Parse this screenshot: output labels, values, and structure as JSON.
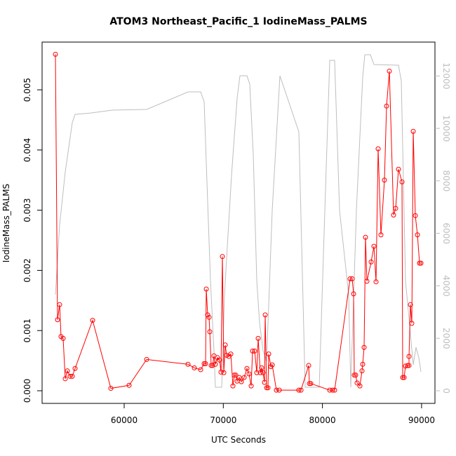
{
  "chart_data": {
    "type": "line",
    "title": "ATOM3 Northeast_Pacific_1 IodineMass_PALMS",
    "x_label": "UTC Seconds",
    "y_label": "IodineMass_PALMS",
    "xlim": [
      51720,
      91350
    ],
    "xticks": [
      60000,
      70000,
      80000,
      90000
    ],
    "ylim": [
      -0.00021,
      0.005793
    ],
    "yticks": [
      {
        "value": 0,
        "label": "0.000"
      },
      {
        "value": 0.001,
        "label": "0.001"
      },
      {
        "value": 0.002,
        "label": "0.002"
      },
      {
        "value": 0.003,
        "label": "0.003"
      },
      {
        "value": 0.004,
        "label": "0.004"
      },
      {
        "value": 0.005,
        "label": "0.005"
      }
    ],
    "y2lim": [
      -481,
      13289
    ],
    "y2ticks": [
      0,
      2000,
      4000,
      6000,
      8000,
      10000,
      12000
    ],
    "series": [
      {
        "color": "#bebebe",
        "axis": "y2",
        "markers": false,
        "x": [
          53065,
          53490,
          54055,
          54763,
          55046,
          56674,
          58797,
          62265,
          66440,
          67714,
          68068,
          68351,
          68705,
          69059,
          69200,
          69837,
          70120,
          70828,
          71394,
          71677,
          72385,
          72668,
          73022,
          73376,
          73659,
          74013,
          74367,
          74933,
          75711,
          77622,
          78259,
          79675,
          80241,
          80736,
          81231,
          81727,
          82646,
          82859,
          83425,
          84062,
          84274,
          84840,
          85194,
          87671,
          87954,
          88379,
          89158,
          89441,
          89724,
          89936
        ],
        "values": [
          3663,
          6337,
          8342,
          10214,
          10535,
          10588,
          10695,
          10722,
          11390,
          11390,
          11016,
          7941,
          4198,
          1524,
          134,
          134,
          3663,
          8209,
          11150,
          12005,
          12005,
          11684,
          9011,
          4198,
          2594,
          1524,
          1123,
          6872,
          12005,
          9866,
          134,
          134,
          6872,
          12594,
          12594,
          6872,
          3663,
          134,
          6872,
          11952,
          12807,
          12807,
          12433,
          12406,
          11818,
          4198,
          990,
          1658,
          1257,
          722
        ]
      },
      {
        "color": "#ff0000",
        "axis": "y",
        "markers": true,
        "x": [
          53065,
          53277,
          53490,
          53630,
          53843,
          54055,
          54267,
          54550,
          54763,
          55046,
          56815,
          58655,
          60495,
          62265,
          66440,
          67077,
          67714,
          68068,
          68210,
          68280,
          68422,
          68563,
          68634,
          68775,
          68917,
          69059,
          69200,
          69413,
          69625,
          69766,
          69908,
          70050,
          70191,
          70333,
          70545,
          70757,
          70970,
          71111,
          71253,
          71394,
          71607,
          71819,
          72102,
          72385,
          72597,
          72810,
          72951,
          73163,
          73376,
          73517,
          73730,
          73871,
          74013,
          74154,
          74225,
          74367,
          74508,
          74579,
          74791,
          74933,
          75357,
          75640,
          77622,
          77834,
          78613,
          78684,
          78825,
          80736,
          81019,
          81231,
          82788,
          83000,
          83141,
          83212,
          83354,
          83495,
          83778,
          83991,
          84062,
          84203,
          84345,
          84486,
          84911,
          85194,
          85406,
          85618,
          85901,
          86255,
          86468,
          86751,
          87176,
          87388,
          87671,
          88025,
          88096,
          88237,
          88379,
          88591,
          88733,
          88733,
          88875,
          89016,
          89158,
          89370,
          89583,
          89795,
          89936
        ],
        "values": [
          0.00559,
          0.00118,
          0.00143,
          0.0009,
          0.00087,
          0.0002,
          0.00033,
          0.00024,
          0.00024,
          0.00037,
          0.00117,
          4e-05,
          9e-05,
          0.00052,
          0.00044,
          0.00038,
          0.00035,
          0.00045,
          0.00045,
          0.00169,
          0.00126,
          0.00122,
          0.00098,
          0.00042,
          0.00042,
          0.00058,
          0.00044,
          0.00055,
          0.00051,
          0.00031,
          0.00223,
          0.0003,
          0.00076,
          0.00059,
          0.00057,
          0.00061,
          8e-05,
          0.00026,
          0.00026,
          0.00016,
          0.00022,
          0.00015,
          0.00022,
          0.00037,
          0.00028,
          8e-05,
          0.00066,
          0.00066,
          0.0003,
          0.00087,
          0.0003,
          0.00038,
          0.0003,
          0.00014,
          0.00126,
          5e-05,
          5e-05,
          0.00061,
          0.0004,
          0.00043,
          1e-05,
          1e-05,
          1e-05,
          1e-05,
          0.00042,
          0.00012,
          0.00012,
          1e-05,
          1e-05,
          1e-05,
          0.00186,
          0.00186,
          0.00161,
          0.00026,
          0.00026,
          0.00013,
          8e-05,
          0.00033,
          0.00044,
          0.00072,
          0.00255,
          0.00182,
          0.00214,
          0.0024,
          0.00181,
          0.00402,
          0.00259,
          0.0035,
          0.00473,
          0.00531,
          0.00292,
          0.00303,
          0.00368,
          0.00347,
          0.00022,
          0.00022,
          0.00041,
          0.00042,
          0.00042,
          0.00057,
          0.00143,
          0.00112,
          0.00431,
          0.00291,
          0.00259,
          0.00212,
          0.00212
        ]
      }
    ]
  }
}
